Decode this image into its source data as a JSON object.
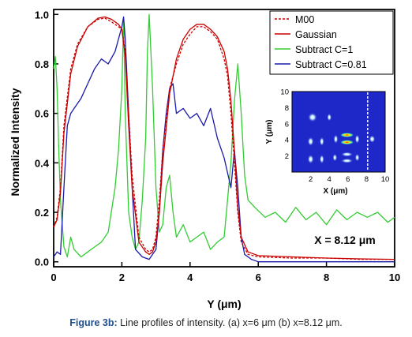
{
  "chart_data": {
    "type": "line",
    "xlabel": "Y (μm)",
    "ylabel": "Normalized Intensity",
    "xlim": [
      0,
      10
    ],
    "ylim": [
      -0.02,
      1.02
    ],
    "xticks": [
      "0",
      "2",
      "4",
      "6",
      "8",
      "10"
    ],
    "yticks": [
      "0.0",
      "0.2",
      "0.4",
      "0.6",
      "0.8",
      "1.0"
    ],
    "legend_position": "top-right",
    "annotation": "X = 8.12 μm",
    "series": [
      {
        "name": "M00",
        "color": "#cc0000",
        "dashed": true,
        "x": [
          0,
          0.1,
          0.2,
          0.3,
          0.5,
          0.7,
          1.0,
          1.3,
          1.5,
          1.7,
          1.9,
          2.0,
          2.1,
          2.2,
          2.3,
          2.5,
          2.7,
          2.8,
          2.9,
          3.0,
          3.1,
          3.2,
          3.4,
          3.6,
          3.8,
          4.0,
          4.2,
          4.4,
          4.6,
          4.8,
          5.0,
          5.1,
          5.2,
          5.3,
          5.4,
          5.5,
          5.7,
          6,
          7,
          8,
          9,
          10
        ],
        "y": [
          0.14,
          0.18,
          0.3,
          0.55,
          0.78,
          0.88,
          0.95,
          0.98,
          0.985,
          0.97,
          0.95,
          0.94,
          0.85,
          0.6,
          0.35,
          0.1,
          0.05,
          0.04,
          0.05,
          0.1,
          0.25,
          0.45,
          0.7,
          0.8,
          0.88,
          0.92,
          0.95,
          0.95,
          0.93,
          0.9,
          0.82,
          0.75,
          0.6,
          0.4,
          0.2,
          0.08,
          0.03,
          0.02,
          0.015,
          0.015,
          0.01,
          0.01
        ]
      },
      {
        "name": "Gaussian",
        "color": "#cc0000",
        "dashed": false,
        "x": [
          0,
          0.1,
          0.2,
          0.3,
          0.5,
          0.7,
          1.0,
          1.3,
          1.5,
          1.7,
          1.9,
          2.0,
          2.1,
          2.2,
          2.3,
          2.5,
          2.7,
          2.8,
          2.9,
          3.0,
          3.1,
          3.2,
          3.4,
          3.6,
          3.8,
          4.0,
          4.2,
          4.4,
          4.6,
          4.8,
          5.0,
          5.1,
          5.2,
          5.3,
          5.4,
          5.5,
          5.7,
          6,
          7,
          8,
          9,
          10
        ],
        "y": [
          0.14,
          0.17,
          0.28,
          0.52,
          0.76,
          0.87,
          0.95,
          0.985,
          0.99,
          0.98,
          0.96,
          0.94,
          0.83,
          0.55,
          0.3,
          0.08,
          0.04,
          0.03,
          0.04,
          0.08,
          0.2,
          0.4,
          0.68,
          0.82,
          0.9,
          0.94,
          0.96,
          0.96,
          0.94,
          0.91,
          0.85,
          0.78,
          0.65,
          0.45,
          0.22,
          0.1,
          0.04,
          0.025,
          0.02,
          0.015,
          0.012,
          0.01
        ]
      },
      {
        "name": "Subtract C=1",
        "color": "#33cc33",
        "dashed": false,
        "x": [
          0,
          0.05,
          0.1,
          0.15,
          0.2,
          0.3,
          0.4,
          0.5,
          0.6,
          0.8,
          1.0,
          1.2,
          1.4,
          1.6,
          1.8,
          1.9,
          2.0,
          2.05,
          2.1,
          2.2,
          2.3,
          2.4,
          2.5,
          2.6,
          2.7,
          2.75,
          2.8,
          2.9,
          3.0,
          3.1,
          3.2,
          3.3,
          3.4,
          3.5,
          3.6,
          3.8,
          4.0,
          4.2,
          4.4,
          4.6,
          4.8,
          5.0,
          5.2,
          5.3,
          5.4,
          5.5,
          5.6,
          5.7,
          5.9,
          6.2,
          6.5,
          6.8,
          7.1,
          7.4,
          7.7,
          8.0,
          8.3,
          8.6,
          8.9,
          9.2,
          9.5,
          9.8,
          10
        ],
        "y": [
          0.78,
          0.83,
          0.7,
          0.45,
          0.25,
          0.06,
          0.02,
          0.1,
          0.05,
          0.02,
          0.04,
          0.06,
          0.08,
          0.12,
          0.3,
          0.45,
          0.7,
          0.98,
          0.6,
          0.2,
          0.1,
          0.05,
          0.08,
          0.25,
          0.5,
          0.85,
          1.0,
          0.7,
          0.3,
          0.12,
          0.15,
          0.3,
          0.35,
          0.2,
          0.1,
          0.15,
          0.08,
          0.1,
          0.12,
          0.05,
          0.08,
          0.1,
          0.4,
          0.65,
          0.8,
          0.6,
          0.35,
          0.25,
          0.22,
          0.18,
          0.2,
          0.16,
          0.22,
          0.17,
          0.2,
          0.15,
          0.21,
          0.17,
          0.2,
          0.18,
          0.2,
          0.16,
          0.18
        ]
      },
      {
        "name": "Subtract C=0.81",
        "color": "#1a1aaa",
        "dashed": false,
        "x": [
          0,
          0.1,
          0.2,
          0.3,
          0.4,
          0.5,
          0.6,
          0.8,
          1.0,
          1.2,
          1.4,
          1.6,
          1.8,
          1.9,
          2.0,
          2.05,
          2.1,
          2.2,
          2.3,
          2.4,
          2.6,
          2.8,
          2.9,
          3.0,
          3.1,
          3.2,
          3.3,
          3.4,
          3.5,
          3.6,
          3.8,
          4.0,
          4.2,
          4.4,
          4.6,
          4.8,
          5.0,
          5.2,
          5.3,
          5.4,
          5.5,
          5.6,
          5.8,
          6.0,
          7,
          8,
          9,
          10
        ],
        "y": [
          0.02,
          0.04,
          0.03,
          0.3,
          0.55,
          0.6,
          0.62,
          0.66,
          0.72,
          0.78,
          0.82,
          0.8,
          0.85,
          0.9,
          0.95,
          0.99,
          0.9,
          0.6,
          0.3,
          0.05,
          0.02,
          0.01,
          0.03,
          0.05,
          0.2,
          0.45,
          0.6,
          0.7,
          0.72,
          0.6,
          0.62,
          0.58,
          0.6,
          0.55,
          0.62,
          0.5,
          0.42,
          0.3,
          0.45,
          0.3,
          0.1,
          0.03,
          0.01,
          0.0,
          0.0,
          0.0,
          0.0,
          0.0
        ]
      }
    ],
    "inset": {
      "type": "heatmap",
      "xlabel": "X (μm)",
      "ylabel": "Y (μm)",
      "xticks": [
        "2",
        "4",
        "6",
        "8",
        "10"
      ],
      "yticks": [
        "2",
        "4",
        "6",
        "8",
        "10"
      ],
      "xlim": [
        0,
        10
      ],
      "ylim": [
        0,
        10
      ],
      "marker_line_x": 8.12,
      "background": "#1e28c8"
    }
  },
  "caption": {
    "label": "Figure 3b:",
    "text": "Line profiles of intensity. (a) x=6 μm (b) x=8.12 μm."
  }
}
